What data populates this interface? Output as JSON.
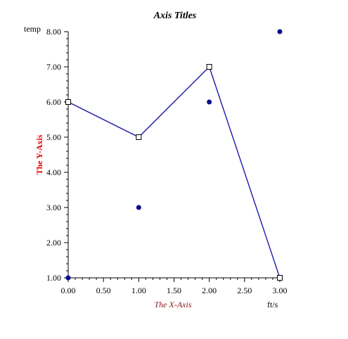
{
  "chart_data": {
    "type": "line",
    "title": "Axis Titles",
    "xlabel": "The X-Axis",
    "ylabel": "The Y-Axis",
    "x_unit": "ft/s",
    "y_unit": "temp",
    "xlim": [
      0,
      3
    ],
    "ylim": [
      1,
      8
    ],
    "x_ticks": [
      "0.00",
      "0.50",
      "1.00",
      "1.50",
      "2.00",
      "2.50",
      "3.00"
    ],
    "y_ticks": [
      "1.00",
      "2.00",
      "3.00",
      "4.00",
      "5.00",
      "6.00",
      "7.00",
      "8.00"
    ],
    "grid": false,
    "series": [
      {
        "style": "line-open-square",
        "color": "#1a1aa6",
        "points": [
          {
            "x": 0,
            "y": 6
          },
          {
            "x": 1,
            "y": 5
          },
          {
            "x": 2,
            "y": 7
          },
          {
            "x": 3,
            "y": 1
          }
        ]
      },
      {
        "style": "scatter-filled-circle",
        "color": "#0a0a8c",
        "points": [
          {
            "x": 0,
            "y": 1
          },
          {
            "x": 1,
            "y": 3
          },
          {
            "x": 2,
            "y": 6
          },
          {
            "x": 3,
            "y": 8
          }
        ]
      }
    ],
    "colors": {
      "x_title": "#8b1a1a",
      "y_title": "#e00000",
      "axis": "#000000"
    }
  }
}
